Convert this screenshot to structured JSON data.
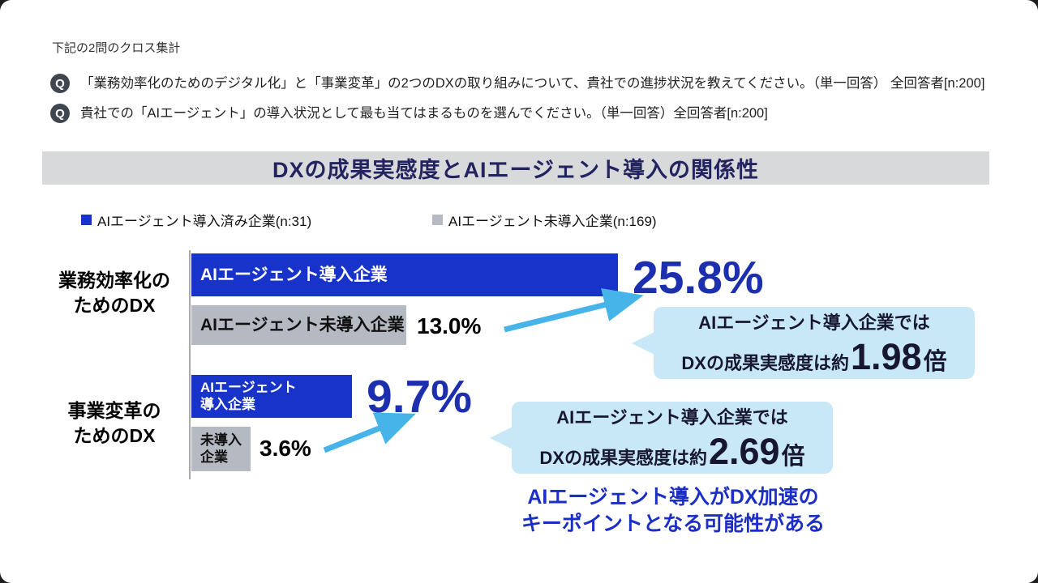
{
  "header": {
    "note": "下記の2問のクロス集計",
    "questions": [
      {
        "badge": "Q",
        "text": "「業務効率化のためのデジタル化」と「事業変革」の2つのDXの取り組みについて、貴社での進捗状況を教えてください。（単一回答） 全回答者[n:200]"
      },
      {
        "badge": "Q",
        "text": "貴社での「AIエージェント」の導入状況として最も当てはまるものを選んでください。（単一回答）全回答者[n:200]"
      }
    ]
  },
  "title": "DXの成果実感度とAIエージェント導入の関係性",
  "legend": [
    {
      "label": "AIエージェント導入済み企業(n:31)",
      "color": "#1733c9"
    },
    {
      "label": "AIエージェント未導入企業(n:169)",
      "color": "#b4b9c2"
    }
  ],
  "colors": {
    "bar_blue": "#1733c9",
    "bar_gray": "#b4b9c2",
    "value_blue": "#1c2fae",
    "callout_bg": "#c8e8f8",
    "arrow": "#46b3e9",
    "conclusion_text": "#1b2ec6",
    "title_text": "#23235f"
  },
  "chart_data": {
    "type": "bar",
    "orientation": "horizontal",
    "unit": "%",
    "title": "DXの成果実感度とAIエージェント導入の関係性",
    "series_names": [
      "AIエージェント導入済み企業(n:31)",
      "AIエージェント未導入企業(n:169)"
    ],
    "groups": [
      {
        "category": "業務効率化の\nためのDX",
        "bars": [
          {
            "series": "AIエージェント導入済み企業",
            "bar_label": "AIエージェント導入企業",
            "value": 25.8,
            "display": "25.8%",
            "color": "#1733c9"
          },
          {
            "series": "AIエージェント未導入企業",
            "bar_label": "AIエージェント未導入企業",
            "value": 13.0,
            "display": "13.0%",
            "color": "#b4b9c2"
          }
        ]
      },
      {
        "category": "事業変革の\nためのDX",
        "bars": [
          {
            "series": "AIエージェント導入済み企業",
            "bar_label": "AIエージェント\n導入企業",
            "value": 9.7,
            "display": "9.7%",
            "color": "#1733c9"
          },
          {
            "series": "AIエージェント未導入企業",
            "bar_label": "未導入\n企業",
            "value": 3.6,
            "display": "3.6%",
            "color": "#b4b9c2"
          }
        ]
      }
    ],
    "callouts": [
      {
        "line1": "AIエージェント導入企業では",
        "line2_prefix": "DXの成果実感度は約",
        "multiplier": "1.98",
        "line2_suffix": "倍"
      },
      {
        "line1": "AIエージェント導入企業では",
        "line2_prefix": "DXの成果実感度は約",
        "multiplier": "2.69",
        "line2_suffix": "倍"
      }
    ],
    "conclusion": "AIエージェント導入がDX加速の\nキーポイントとなる可能性がある",
    "xlim": [
      0,
      30
    ],
    "grid": false,
    "legend_position": "top"
  }
}
